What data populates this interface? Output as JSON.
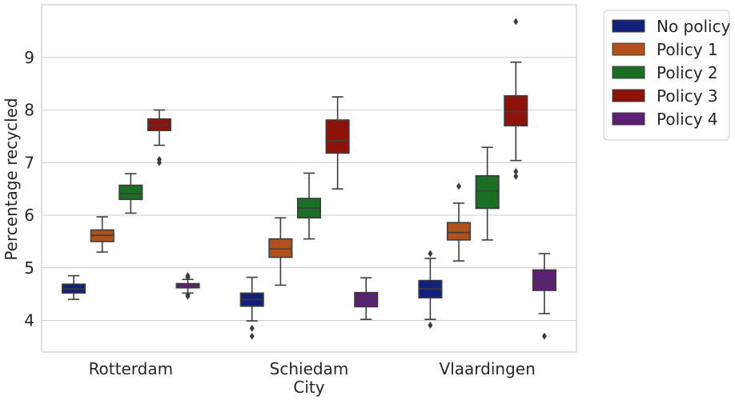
{
  "chart_data": {
    "type": "box",
    "xlabel": "City",
    "ylabel": "Percentage recycled",
    "ylim": [
      3.4,
      10.0
    ],
    "yticks": [
      4,
      5,
      6,
      7,
      8,
      9
    ],
    "grid": true,
    "legend_position": "outside top-right",
    "categories": [
      "Rotterdam",
      "Schiedam",
      "Vlaardingen"
    ],
    "series": [
      {
        "name": "No policy",
        "color": "#11217a",
        "boxes": [
          {
            "whisker_low": 4.4,
            "q1": 4.52,
            "median": 4.6,
            "q3": 4.69,
            "whisker_high": 4.85,
            "outliers": []
          },
          {
            "whisker_low": 3.99,
            "q1": 4.27,
            "median": 4.4,
            "q3": 4.52,
            "whisker_high": 4.82,
            "outliers": [
              3.85,
              3.7
            ]
          },
          {
            "whisker_low": 4.02,
            "q1": 4.43,
            "median": 4.6,
            "q3": 4.76,
            "whisker_high": 5.18,
            "outliers": [
              5.27,
              3.91
            ]
          }
        ]
      },
      {
        "name": "Policy 1",
        "color": "#b0511c",
        "boxes": [
          {
            "whisker_low": 5.3,
            "q1": 5.5,
            "median": 5.62,
            "q3": 5.72,
            "whisker_high": 5.97,
            "outliers": []
          },
          {
            "whisker_low": 4.67,
            "q1": 5.2,
            "median": 5.36,
            "q3": 5.55,
            "whisker_high": 5.95,
            "outliers": []
          },
          {
            "whisker_low": 5.13,
            "q1": 5.53,
            "median": 5.67,
            "q3": 5.86,
            "whisker_high": 6.23,
            "outliers": [
              6.55
            ]
          }
        ]
      },
      {
        "name": "Policy 2",
        "color": "#1b6f25",
        "boxes": [
          {
            "whisker_low": 6.04,
            "q1": 6.3,
            "median": 6.41,
            "q3": 6.57,
            "whisker_high": 6.79,
            "outliers": []
          },
          {
            "whisker_low": 5.55,
            "q1": 5.95,
            "median": 6.14,
            "q3": 6.32,
            "whisker_high": 6.8,
            "outliers": []
          },
          {
            "whisker_low": 5.53,
            "q1": 6.13,
            "median": 6.46,
            "q3": 6.75,
            "whisker_high": 7.29,
            "outliers": []
          }
        ]
      },
      {
        "name": "Policy 3",
        "color": "#8c1309",
        "boxes": [
          {
            "whisker_low": 7.33,
            "q1": 7.61,
            "median": 7.71,
            "q3": 7.83,
            "whisker_high": 8.0,
            "outliers": [
              7.06,
              7.0
            ]
          },
          {
            "whisker_low": 6.5,
            "q1": 7.18,
            "median": 7.42,
            "q3": 7.81,
            "whisker_high": 8.25,
            "outliers": []
          },
          {
            "whisker_low": 7.04,
            "q1": 7.7,
            "median": 7.97,
            "q3": 8.27,
            "whisker_high": 8.91,
            "outliers": [
              9.68,
              6.83,
              6.74
            ]
          }
        ]
      },
      {
        "name": "Policy 4",
        "color": "#5b1f73",
        "boxes": [
          {
            "whisker_low": 4.52,
            "q1": 4.62,
            "median": 4.66,
            "q3": 4.7,
            "whisker_high": 4.78,
            "outliers": [
              4.85,
              4.82,
              4.49,
              4.46
            ]
          },
          {
            "whisker_low": 4.02,
            "q1": 4.26,
            "median": 4.41,
            "q3": 4.53,
            "whisker_high": 4.81,
            "outliers": []
          },
          {
            "whisker_low": 4.13,
            "q1": 4.57,
            "median": 4.73,
            "q3": 4.96,
            "whisker_high": 5.27,
            "outliers": [
              3.7
            ]
          }
        ]
      }
    ]
  }
}
